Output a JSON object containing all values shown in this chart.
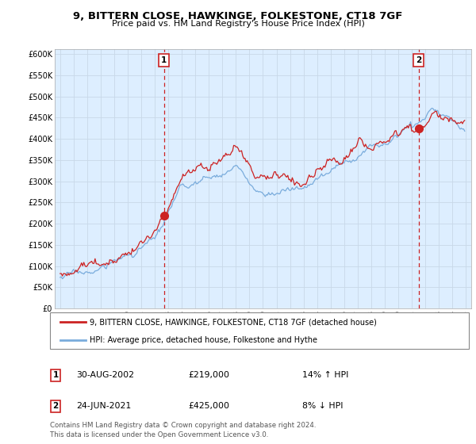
{
  "title": "9, BITTERN CLOSE, HAWKINGE, FOLKESTONE, CT18 7GF",
  "subtitle": "Price paid vs. HM Land Registry's House Price Index (HPI)",
  "ytick_values": [
    0,
    50000,
    100000,
    150000,
    200000,
    250000,
    300000,
    350000,
    400000,
    450000,
    500000,
    550000,
    600000
  ],
  "ylim": [
    0,
    612000
  ],
  "xlim_start": 1994.6,
  "xlim_end": 2025.4,
  "marker1_x": 2002.667,
  "marker1_y": 219000,
  "marker2_x": 2021.5,
  "marker2_y": 425000,
  "vline1_x": 2002.667,
  "vline2_x": 2021.5,
  "legend_line1": "9, BITTERN CLOSE, HAWKINGE, FOLKESTONE, CT18 7GF (detached house)",
  "legend_line2": "HPI: Average price, detached house, Folkestone and Hythe",
  "table_row1": [
    "1",
    "30-AUG-2002",
    "£219,000",
    "14% ↑ HPI"
  ],
  "table_row2": [
    "2",
    "24-JUN-2021",
    "£425,000",
    "8% ↓ HPI"
  ],
  "footer": "Contains HM Land Registry data © Crown copyright and database right 2024.\nThis data is licensed under the Open Government Licence v3.0.",
  "red_color": "#cc2222",
  "blue_color": "#7aacdc",
  "bg_plot_color": "#ddeeff",
  "vline_color": "#cc2222",
  "background_color": "#ffffff"
}
